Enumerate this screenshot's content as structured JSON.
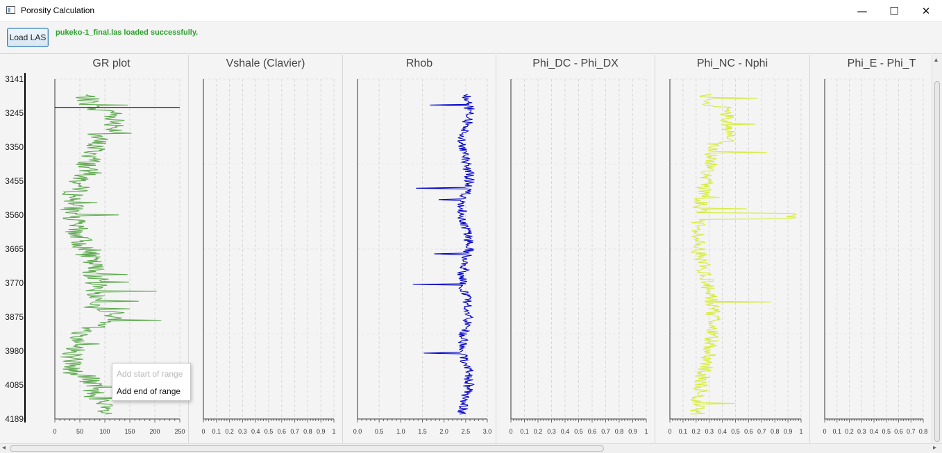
{
  "window": {
    "title": "Porosity Calculation",
    "minimize_glyph": "—",
    "maximize_glyph": "☐",
    "close_glyph": "✕"
  },
  "toolbar": {
    "load_label": "Load LAS",
    "status_text": "pukeko-1_final.las loaded successfully.",
    "status_color": "#2aa02a"
  },
  "depth_axis": {
    "labels": [
      "3141",
      "3245",
      "3350",
      "3455",
      "3560",
      "3665",
      "3770",
      "3875",
      "3980",
      "4085",
      "4189"
    ],
    "min": 3141,
    "max": 4189
  },
  "panels": [
    {
      "title": "GR plot",
      "ticks": [
        "0",
        "50",
        "100",
        "150",
        "200",
        "250"
      ],
      "xmin": 0,
      "xmax": 250,
      "curve_color": "#5faa50",
      "curve": "gr"
    },
    {
      "title": "Vshale (Clavier)",
      "ticks": [
        "0",
        "0.1",
        "0.2",
        "0.3",
        "0.4",
        "0.5",
        "0.6",
        "0.7",
        "0.8",
        "0.9",
        "1"
      ],
      "xmin": 0,
      "xmax": 1,
      "curve": "none"
    },
    {
      "title": "Rhob",
      "ticks": [
        "0.0",
        "0.5",
        "1.0",
        "1.5",
        "2.0",
        "2.5",
        "3.0"
      ],
      "xmin": 0,
      "xmax": 3,
      "curve_color": "#0000cc",
      "curve": "rhob"
    },
    {
      "title": "Phi_DC - Phi_DX",
      "ticks": [
        "0",
        "0.1",
        "0.2",
        "0.3",
        "0.4",
        "0.5",
        "0.6",
        "0.7",
        "0.8",
        "0.9",
        "1"
      ],
      "xmin": 0,
      "xmax": 1,
      "curve": "none"
    },
    {
      "title": "Phi_NC - Nphi",
      "ticks": [
        "0",
        "0.1",
        "0.2",
        "0.3",
        "0.4",
        "0.5",
        "0.6",
        "0.7",
        "0.8",
        "0.9",
        "1"
      ],
      "xmin": 0,
      "xmax": 1,
      "curve_color": "#d6ec3a",
      "curve": "nphi"
    },
    {
      "title": "Phi_E - Phi_T",
      "ticks": [
        "0",
        "0.1",
        "0.2",
        "0.3",
        "0.4",
        "0.5",
        "0.6",
        "0.7",
        "0.8"
      ],
      "xmin": 0,
      "xmax": 1,
      "curve": "none"
    }
  ],
  "context_menu": {
    "items": [
      {
        "label": "Add start of range",
        "enabled": false
      },
      {
        "label": "Add end of range",
        "enabled": true
      }
    ]
  }
}
